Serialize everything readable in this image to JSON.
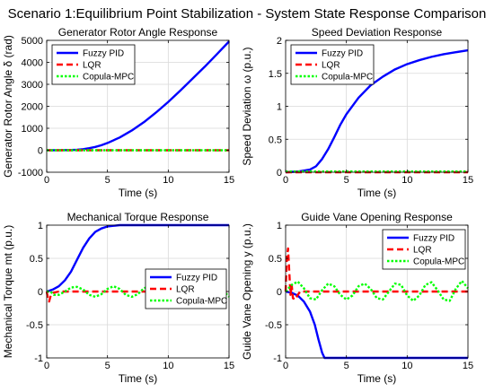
{
  "figure_title": "Scenario 1:Equilibrium Point Stabilization - System State Response Comparison",
  "colors": {
    "fuzzy_pid": "#0000ff",
    "lqr": "#ff0000",
    "copula_mpc": "#00ff00",
    "grid": "#d9d9d9",
    "axes": "#000000"
  },
  "chart_data": [
    {
      "type": "line",
      "title": "Generator Rotor Angle Response",
      "xlabel": "Time (s)",
      "ylabel": "Generator Rotor Angle δ (rad)",
      "xlim": [
        0,
        15
      ],
      "ylim": [
        -1000,
        5000
      ],
      "xticks": [
        0,
        5,
        10,
        15
      ],
      "yticks": [
        -1000,
        0,
        1000,
        2000,
        3000,
        4000,
        5000
      ],
      "ytick_labels": [
        "-1000",
        "0",
        "1000",
        "2000",
        "3000",
        "4000",
        "5000"
      ],
      "grid": true,
      "legend": "top-left",
      "series": [
        {
          "name": "Fuzzy PID",
          "x": [
            0,
            1,
            2,
            2.5,
            3,
            3.5,
            4,
            4.5,
            5,
            6,
            7,
            8,
            9,
            10,
            11,
            12,
            13,
            14,
            15
          ],
          "y": [
            0,
            1,
            10,
            25,
            50,
            95,
            150,
            230,
            330,
            580,
            900,
            1280,
            1720,
            2200,
            2720,
            3260,
            3800,
            4370,
            4950
          ]
        },
        {
          "name": "LQR",
          "x": [
            0,
            5,
            10,
            15
          ],
          "y": [
            0,
            0,
            0,
            0
          ]
        },
        {
          "name": "Copula-MPC",
          "x": [
            0,
            5,
            10,
            15
          ],
          "y": [
            0,
            0,
            0,
            0
          ]
        }
      ]
    },
    {
      "type": "line",
      "title": "Speed Deviation Response",
      "xlabel": "Time (s)",
      "ylabel": "Speed Deviation  ω (p.u.)",
      "xlim": [
        0,
        15
      ],
      "ylim": [
        0,
        2
      ],
      "xticks": [
        0,
        5,
        10,
        15
      ],
      "yticks": [
        0,
        0.5,
        1,
        1.5,
        2
      ],
      "ytick_labels": [
        "0",
        "0.5",
        "1",
        "1.5",
        "2"
      ],
      "grid": true,
      "legend": "top-left",
      "series": [
        {
          "name": "Fuzzy PID",
          "x": [
            0,
            1,
            2,
            2.5,
            3,
            3.5,
            4,
            4.5,
            5,
            6,
            7,
            8,
            9,
            10,
            11,
            12,
            13,
            14,
            15
          ],
          "y": [
            0,
            0.01,
            0.04,
            0.09,
            0.2,
            0.35,
            0.53,
            0.72,
            0.88,
            1.13,
            1.32,
            1.45,
            1.56,
            1.64,
            1.7,
            1.75,
            1.79,
            1.82,
            1.85
          ]
        },
        {
          "name": "LQR",
          "x": [
            0,
            5,
            10,
            15
          ],
          "y": [
            0,
            0,
            0,
            0
          ]
        },
        {
          "name": "Copula-MPC",
          "x": [
            0,
            5,
            10,
            15
          ],
          "y": [
            0.01,
            0.01,
            0.01,
            0.01
          ]
        }
      ]
    },
    {
      "type": "line",
      "title": "Mechanical Torque Response",
      "xlabel": "Time (s)",
      "ylabel": "Mechanical Torque  mt (p.u.)",
      "xlim": [
        0,
        15
      ],
      "ylim": [
        -1,
        1
      ],
      "xticks": [
        0,
        5,
        10,
        15
      ],
      "yticks": [
        -1,
        -0.5,
        0,
        0.5,
        1
      ],
      "ytick_labels": [
        "-1",
        "-0.5",
        "0",
        "0.5",
        "1"
      ],
      "grid": true,
      "legend": "bottom-right",
      "series": [
        {
          "name": "Fuzzy PID",
          "x": [
            0,
            0.5,
            1,
            1.5,
            2,
            2.5,
            3,
            3.5,
            4,
            4.5,
            5,
            5.5,
            6,
            7,
            8,
            10,
            15
          ],
          "y": [
            0,
            0.03,
            0.08,
            0.17,
            0.3,
            0.48,
            0.66,
            0.8,
            0.9,
            0.95,
            0.98,
            0.99,
            1.0,
            1.0,
            1.0,
            1.0,
            1.0
          ]
        },
        {
          "name": "LQR",
          "x": [
            0,
            0.1,
            0.2,
            0.3,
            0.5,
            1,
            5,
            10,
            15
          ],
          "y": [
            0,
            -0.1,
            -0.15,
            -0.08,
            -0.02,
            0,
            0,
            0,
            0
          ]
        },
        {
          "name": "Copula-MPC",
          "x": [
            0,
            0.3,
            0.6,
            1.0,
            1.5,
            2.0,
            2.5,
            3.0,
            3.5,
            4.0,
            4.5,
            5.0,
            5.5,
            6.0,
            6.5,
            7.0,
            7.5,
            8.0,
            8.5,
            9.0,
            9.5,
            10.0,
            10.5,
            11.0,
            11.5,
            12.0,
            12.5,
            13.0,
            13.5,
            14.0,
            14.5,
            15.0
          ],
          "y": [
            0,
            0.0,
            -0.05,
            -0.05,
            0.0,
            0.06,
            0.07,
            0.03,
            -0.05,
            -0.08,
            -0.04,
            0.04,
            0.08,
            0.04,
            -0.05,
            -0.08,
            -0.04,
            0.05,
            0.08,
            0.03,
            -0.06,
            -0.08,
            -0.02,
            0.06,
            0.08,
            0.02,
            -0.06,
            -0.08,
            -0.02,
            0.06,
            0.02,
            -0.08
          ]
        }
      ]
    },
    {
      "type": "line",
      "title": "Guide Vane Opening Response",
      "xlabel": "Time (s)",
      "ylabel": "Guide Vane Opening y (p.u.)",
      "xlim": [
        0,
        15
      ],
      "ylim": [
        -1,
        1
      ],
      "xticks": [
        0,
        5,
        10,
        15
      ],
      "yticks": [
        -1,
        -0.5,
        0,
        0.5,
        1
      ],
      "ytick_labels": [
        "-1",
        "-0.5",
        "0",
        "0.5",
        "1"
      ],
      "grid": true,
      "legend": "top-right",
      "series": [
        {
          "name": "Fuzzy PID",
          "x": [
            0,
            0.5,
            1,
            1.5,
            2,
            2.4,
            2.7,
            3.0,
            3.2,
            5,
            10,
            15
          ],
          "y": [
            0,
            -0.02,
            -0.06,
            -0.15,
            -0.3,
            -0.5,
            -0.72,
            -0.92,
            -1.0,
            -1.0,
            -1.0,
            -1.0
          ]
        },
        {
          "name": "LQR",
          "x": [
            0,
            0.1,
            0.2,
            0.3,
            0.4,
            0.5,
            0.6,
            0.8,
            1.0,
            1.2,
            2,
            5,
            10,
            15
          ],
          "y": [
            0,
            0.5,
            0.65,
            0.3,
            -0.05,
            0.1,
            -0.1,
            -0.12,
            -0.05,
            0.0,
            0,
            0,
            0,
            0
          ]
        },
        {
          "name": "Copula-MPC",
          "x": [
            0,
            0.5,
            1.0,
            1.5,
            2.0,
            2.5,
            3.0,
            3.5,
            4.0,
            4.5,
            5.0,
            5.5,
            6.0,
            6.5,
            7.0,
            7.5,
            8.0,
            8.5,
            9.0,
            9.5,
            10.0,
            10.5,
            11.0,
            11.5,
            12.0,
            12.5,
            13.0,
            13.5,
            14.0,
            14.5,
            15.0
          ],
          "y": [
            0,
            0.1,
            0.15,
            0.05,
            -0.1,
            -0.12,
            0.02,
            0.12,
            0.08,
            -0.05,
            -0.12,
            -0.06,
            0.08,
            0.12,
            0.04,
            -0.1,
            -0.12,
            0.0,
            0.12,
            0.1,
            -0.06,
            -0.14,
            -0.06,
            0.1,
            0.14,
            0.02,
            -0.12,
            -0.14,
            0.04,
            0.16,
            0.05
          ]
        }
      ]
    }
  ]
}
